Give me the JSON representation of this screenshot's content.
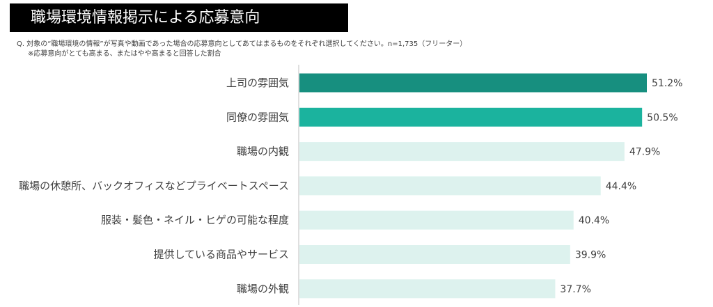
{
  "title": "職場環境情報掲示による応募意向",
  "question": "Q. 対象の“職場環境の情報”が写真や動画であった場合の応募意向としてあてはまるものをそれぞれ選択してください。n=1,735（フリーター）",
  "note": "※応募意向がとても高まる、またはやや高まると回答した割合",
  "colors": {
    "top1": "#178F7F",
    "top2": "#1BB39E",
    "rest": "#DDF2EE",
    "axis": "#bfbfbf"
  },
  "chart_data": {
    "type": "bar",
    "orientation": "horizontal",
    "title": "職場環境情報掲示による応募意向",
    "categories": [
      "上司の雰囲気",
      "同僚の雰囲気",
      "職場の内観",
      "職場の休憩所、バックオフィスなどプライベートスペース",
      "服装・髪色・ネイル・ヒゲの可能な程度",
      "提供している商品やサービス",
      "職場の外観"
    ],
    "values": [
      51.2,
      50.5,
      47.9,
      44.4,
      40.4,
      39.9,
      37.7
    ],
    "value_labels": [
      "51.2%",
      "50.5%",
      "47.9%",
      "44.4%",
      "40.4%",
      "39.9%",
      "37.7%"
    ],
    "unit": "%",
    "xlim": [
      0,
      55
    ],
    "grid": false,
    "legend": "none"
  }
}
